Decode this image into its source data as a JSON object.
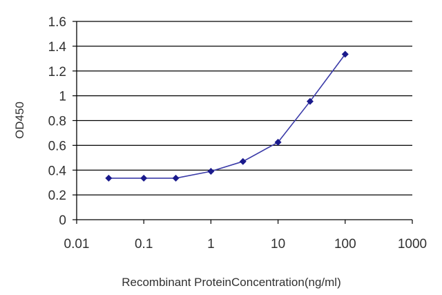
{
  "chart_data": {
    "type": "line",
    "title": "",
    "xlabel": "Recombinant ProteinConcentration(ng/ml)",
    "ylabel": "OD450",
    "x_scale": "log",
    "xlim": [
      0.01,
      1000
    ],
    "ylim": [
      0,
      1.6
    ],
    "x_ticks": [
      "0.01",
      "0.1",
      "1",
      "10",
      "100",
      "1000"
    ],
    "y_ticks": [
      "0",
      "0.2",
      "0.4",
      "0.6",
      "0.8",
      "1",
      "1.2",
      "1.4",
      "1.6"
    ],
    "grid": "horizontal",
    "legend": "none",
    "series": [
      {
        "x": [
          0.03,
          0.1,
          0.3,
          1,
          3,
          10,
          30,
          100
        ],
        "y": [
          0.335,
          0.335,
          0.335,
          0.39,
          0.47,
          0.625,
          0.955,
          1.335
        ],
        "line_color": "#3a3aa8",
        "marker_color": "#1a1a8c",
        "marker": "diamond"
      }
    ]
  }
}
